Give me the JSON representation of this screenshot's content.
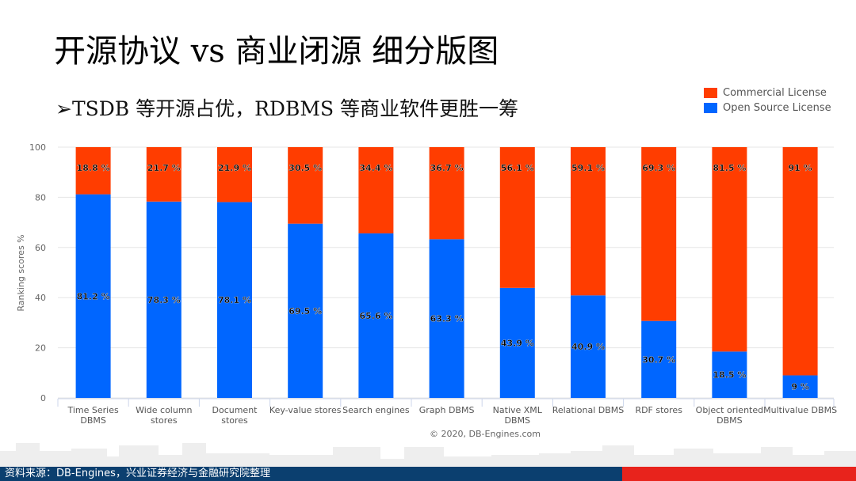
{
  "title": "开源协议 vs 商业闭源 细分版图",
  "subtitle": "➢TSDB 等开源占优，RDBMS 等商业软件更胜一筹",
  "source": "资料来源：DB-Engines，兴业证券经济与金融研究院整理",
  "copyright": "© 2020, DB-Engines.com",
  "colors": {
    "commercial": "#ff3d00",
    "open": "#0066ff",
    "footer": "#0b3f6f",
    "footer_accent": "#e8231c"
  },
  "chart_data": {
    "type": "bar",
    "stacked": true,
    "ylabel": "Ranking scores %",
    "ylim": [
      0,
      100
    ],
    "yticks": [
      0,
      20,
      40,
      60,
      80,
      100
    ],
    "grid": true,
    "legend": "top-right",
    "categories": [
      [
        "Time Series",
        "DBMS"
      ],
      [
        "Wide column",
        "stores"
      ],
      [
        "Document",
        "stores"
      ],
      [
        "Key-value stores"
      ],
      [
        "Search engines"
      ],
      [
        "Graph DBMS"
      ],
      [
        "Native XML",
        "DBMS"
      ],
      [
        "Relational DBMS"
      ],
      [
        "RDF stores"
      ],
      [
        "Object oriented",
        "DBMS"
      ],
      [
        "Multivalue DBMS"
      ]
    ],
    "series": [
      {
        "name": "Open Source License",
        "color": "#0066ff",
        "values": [
          81.2,
          78.3,
          78.1,
          69.5,
          65.6,
          63.3,
          43.9,
          40.9,
          30.7,
          18.5,
          9
        ],
        "labels": [
          "81.2 %",
          "78.3 %",
          "78.1 %",
          "69.5 %",
          "65.6 %",
          "63.3 %",
          "43.9 %",
          "40.9 %",
          "30.7 %",
          "18.5 %",
          "9 %"
        ]
      },
      {
        "name": "Commercial License",
        "color": "#ff3d00",
        "values": [
          18.8,
          21.7,
          21.9,
          30.5,
          34.4,
          36.7,
          56.1,
          59.1,
          69.3,
          81.5,
          91
        ],
        "labels": [
          "18.8 %",
          "21.7 %",
          "21.9 %",
          "30.5 %",
          "34.4 %",
          "36.7 %",
          "56.1 %",
          "59.1 %",
          "69.3 %",
          "81.5 %",
          "91 %"
        ]
      }
    ]
  }
}
